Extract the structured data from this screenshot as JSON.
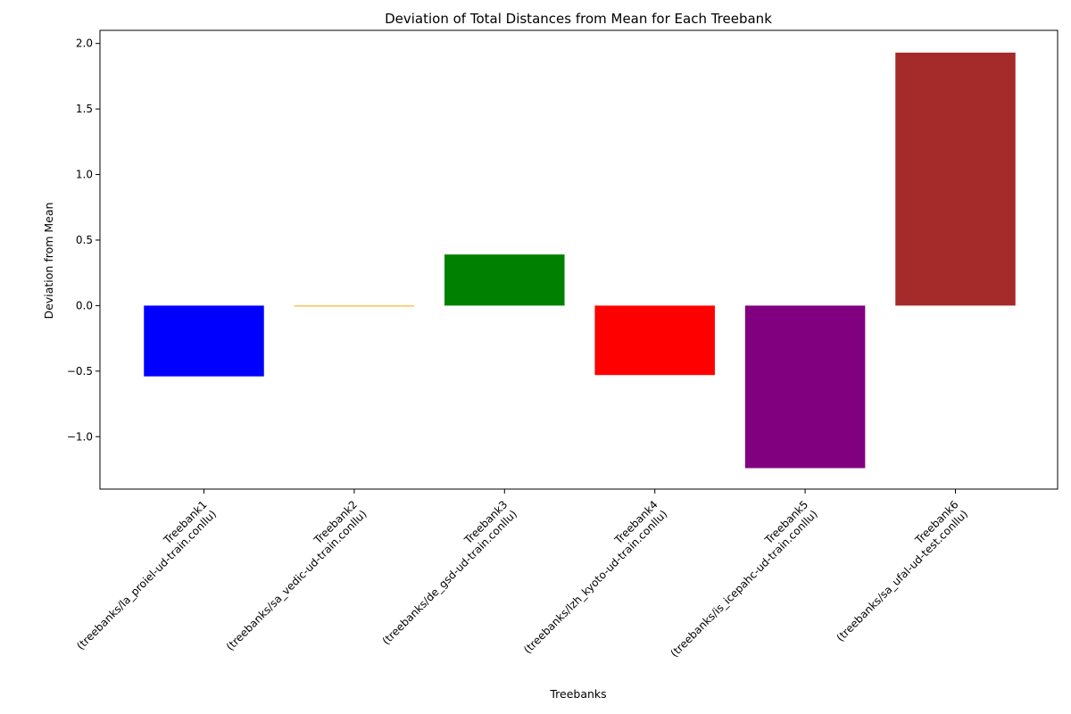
{
  "chart_data": {
    "type": "bar",
    "title": "Deviation of Total Distances from Mean for Each Treebank",
    "xlabel": "Treebanks",
    "ylabel": "Deviation from Mean",
    "ylim": [
      -1.4,
      2.1
    ],
    "yticks": [
      2.0,
      1.5,
      1.0,
      0.5,
      0.0,
      -0.5,
      -1.0
    ],
    "ytick_labels": [
      "2.0",
      "1.5",
      "1.0",
      "0.5",
      "0.0",
      "−0.5",
      "−1.0"
    ],
    "grid": false,
    "categories": [
      {
        "line1": "Treebank1",
        "line2": "(treebanks/la_proiel-ud-train.conllu)"
      },
      {
        "line1": "Treebank2",
        "line2": "(treebanks/sa_vedic-ud-train.conllu)"
      },
      {
        "line1": "Treebank3",
        "line2": "(treebanks/de_gsd-ud-train.conllu)"
      },
      {
        "line1": "Treebank4",
        "line2": "(treebanks/lzh_kyoto-ud-train.conllu)"
      },
      {
        "line1": "Treebank5",
        "line2": "(treebanks/is_icepahc-ud-train.conllu)"
      },
      {
        "line1": "Treebank6",
        "line2": "(treebanks/sa_ufal-ud-test.conllu)"
      }
    ],
    "values": [
      -0.54,
      -0.005,
      0.39,
      -0.53,
      -1.24,
      1.93
    ],
    "colors": [
      "#0000ff",
      "#ffa500",
      "#008000",
      "#ff0000",
      "#800080",
      "#a52a2a"
    ]
  }
}
